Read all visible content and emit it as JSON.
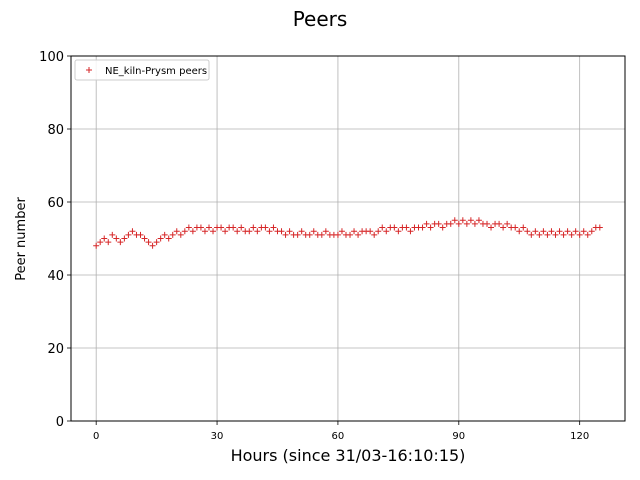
{
  "chart_data": {
    "type": "scatter",
    "title": "Peers",
    "xlabel": "Hours (since 31/03-16:10:15)",
    "ylabel": "Peer number",
    "xlim": [
      -6.25,
      131.25
    ],
    "ylim": [
      0,
      100
    ],
    "xticks": [
      0,
      30,
      60,
      90,
      120
    ],
    "yticks": [
      0,
      20,
      40,
      60,
      80,
      100
    ],
    "grid": true,
    "legend_position": "upper-left",
    "marker": "plus",
    "series": [
      {
        "name": "NE_kiln-Prysm peers",
        "color": "#d62728",
        "points": [
          [
            0,
            48
          ],
          [
            1,
            49
          ],
          [
            2,
            50
          ],
          [
            3,
            49
          ],
          [
            4,
            51
          ],
          [
            5,
            50
          ],
          [
            6,
            49
          ],
          [
            7,
            50
          ],
          [
            8,
            51
          ],
          [
            9,
            52
          ],
          [
            10,
            51
          ],
          [
            11,
            51
          ],
          [
            12,
            50
          ],
          [
            13,
            49
          ],
          [
            14,
            48
          ],
          [
            15,
            49
          ],
          [
            16,
            50
          ],
          [
            17,
            51
          ],
          [
            18,
            50
          ],
          [
            19,
            51
          ],
          [
            20,
            52
          ],
          [
            21,
            51
          ],
          [
            22,
            52
          ],
          [
            23,
            53
          ],
          [
            24,
            52
          ],
          [
            25,
            53
          ],
          [
            26,
            53
          ],
          [
            27,
            52
          ],
          [
            28,
            53
          ],
          [
            29,
            52
          ],
          [
            30,
            53
          ],
          [
            31,
            53
          ],
          [
            32,
            52
          ],
          [
            33,
            53
          ],
          [
            34,
            53
          ],
          [
            35,
            52
          ],
          [
            36,
            53
          ],
          [
            37,
            52
          ],
          [
            38,
            52
          ],
          [
            39,
            53
          ],
          [
            40,
            52
          ],
          [
            41,
            53
          ],
          [
            42,
            53
          ],
          [
            43,
            52
          ],
          [
            44,
            53
          ],
          [
            45,
            52
          ],
          [
            46,
            52
          ],
          [
            47,
            51
          ],
          [
            48,
            52
          ],
          [
            49,
            51
          ],
          [
            50,
            51
          ],
          [
            51,
            52
          ],
          [
            52,
            51
          ],
          [
            53,
            51
          ],
          [
            54,
            52
          ],
          [
            55,
            51
          ],
          [
            56,
            51
          ],
          [
            57,
            52
          ],
          [
            58,
            51
          ],
          [
            59,
            51
          ],
          [
            60,
            51
          ],
          [
            61,
            52
          ],
          [
            62,
            51
          ],
          [
            63,
            51
          ],
          [
            64,
            52
          ],
          [
            65,
            51
          ],
          [
            66,
            52
          ],
          [
            67,
            52
          ],
          [
            68,
            52
          ],
          [
            69,
            51
          ],
          [
            70,
            52
          ],
          [
            71,
            53
          ],
          [
            72,
            52
          ],
          [
            73,
            53
          ],
          [
            74,
            53
          ],
          [
            75,
            52
          ],
          [
            76,
            53
          ],
          [
            77,
            53
          ],
          [
            78,
            52
          ],
          [
            79,
            53
          ],
          [
            80,
            53
          ],
          [
            81,
            53
          ],
          [
            82,
            54
          ],
          [
            83,
            53
          ],
          [
            84,
            54
          ],
          [
            85,
            54
          ],
          [
            86,
            53
          ],
          [
            87,
            54
          ],
          [
            88,
            54
          ],
          [
            89,
            55
          ],
          [
            90,
            54
          ],
          [
            91,
            55
          ],
          [
            92,
            54
          ],
          [
            93,
            55
          ],
          [
            94,
            54
          ],
          [
            95,
            55
          ],
          [
            96,
            54
          ],
          [
            97,
            54
          ],
          [
            98,
            53
          ],
          [
            99,
            54
          ],
          [
            100,
            54
          ],
          [
            101,
            53
          ],
          [
            102,
            54
          ],
          [
            103,
            53
          ],
          [
            104,
            53
          ],
          [
            105,
            52
          ],
          [
            106,
            53
          ],
          [
            107,
            52
          ],
          [
            108,
            51
          ],
          [
            109,
            52
          ],
          [
            110,
            51
          ],
          [
            111,
            52
          ],
          [
            112,
            51
          ],
          [
            113,
            52
          ],
          [
            114,
            51
          ],
          [
            115,
            52
          ],
          [
            116,
            51
          ],
          [
            117,
            52
          ],
          [
            118,
            51
          ],
          [
            119,
            52
          ],
          [
            120,
            51
          ],
          [
            121,
            52
          ],
          [
            122,
            51
          ],
          [
            123,
            52
          ],
          [
            124,
            53
          ],
          [
            125,
            53
          ]
        ]
      }
    ]
  }
}
